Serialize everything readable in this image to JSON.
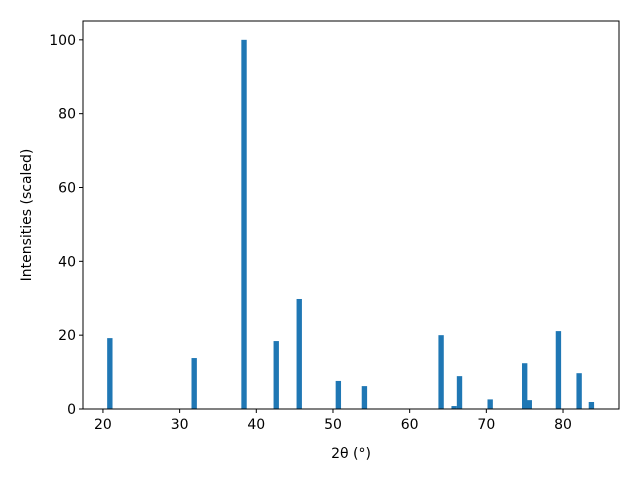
{
  "chart_data": {
    "type": "bar",
    "x": [
      20.9,
      31.9,
      38.4,
      42.6,
      45.6,
      50.7,
      54.1,
      64.1,
      65.8,
      66.5,
      70.5,
      75.0,
      75.6,
      79.4,
      82.1,
      83.7
    ],
    "values": [
      19.2,
      13.8,
      100,
      18.4,
      29.8,
      7.6,
      6.2,
      20,
      0.8,
      8.9,
      2.6,
      12.4,
      2.4,
      21.1,
      9.7,
      1.9
    ],
    "color": "#1f77b4",
    "xlabel": "2θ (°)",
    "ylabel": "Intensities (scaled)",
    "xlim": [
      17.4,
      87.3
    ],
    "xticks": [
      20,
      30,
      40,
      50,
      60,
      70,
      80
    ],
    "ylim": [
      0,
      105.1
    ],
    "yticks": [
      0,
      20,
      40,
      60,
      80,
      100
    ]
  }
}
